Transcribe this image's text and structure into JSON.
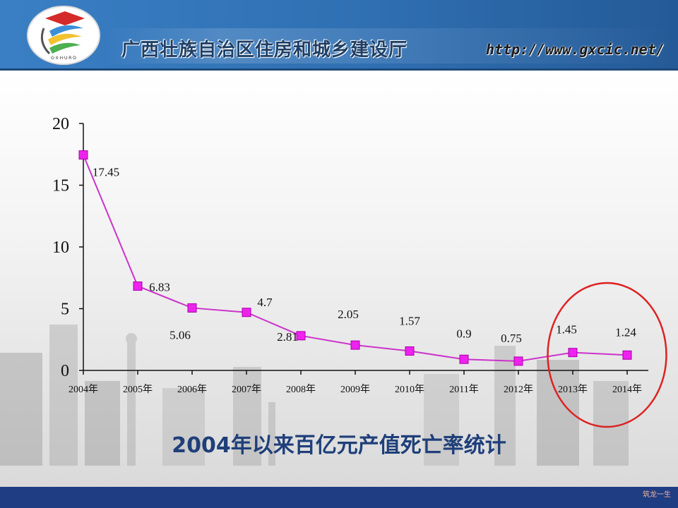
{
  "header": {
    "title": "广西壮族自治区住房和城乡建设厅",
    "url": "http://www.gxcic.net/",
    "logo_text": "G·X·H·U·R·D"
  },
  "chart_data": {
    "type": "line",
    "title": "2004年以来百亿元产值死亡率统计",
    "categories": [
      "2004年",
      "2005年",
      "2006年",
      "2007年",
      "2008年",
      "2009年",
      "2010年",
      "2011年",
      "2012年",
      "2013年",
      "2014年"
    ],
    "series": [
      {
        "values": [
          17.45,
          6.83,
          5.06,
          4.7,
          2.81,
          2.05,
          1.57,
          0.9,
          0.75,
          1.45,
          1.24
        ],
        "color": "#cc33cc"
      }
    ],
    "data_labels": [
      "17.45",
      "6.83",
      "5.06",
      "4.7",
      "2.81",
      "2.05",
      "1.57",
      "0.9",
      "0.75",
      "1.45",
      "1.24"
    ],
    "ylim": [
      0,
      20
    ],
    "yticks": [
      0,
      5,
      10,
      15,
      20
    ],
    "highlight": {
      "categories": [
        "2013年",
        "2014年"
      ],
      "color": "#dd2222",
      "shape": "ellipse"
    }
  },
  "footer": {
    "watermark": "筑龙一生"
  }
}
